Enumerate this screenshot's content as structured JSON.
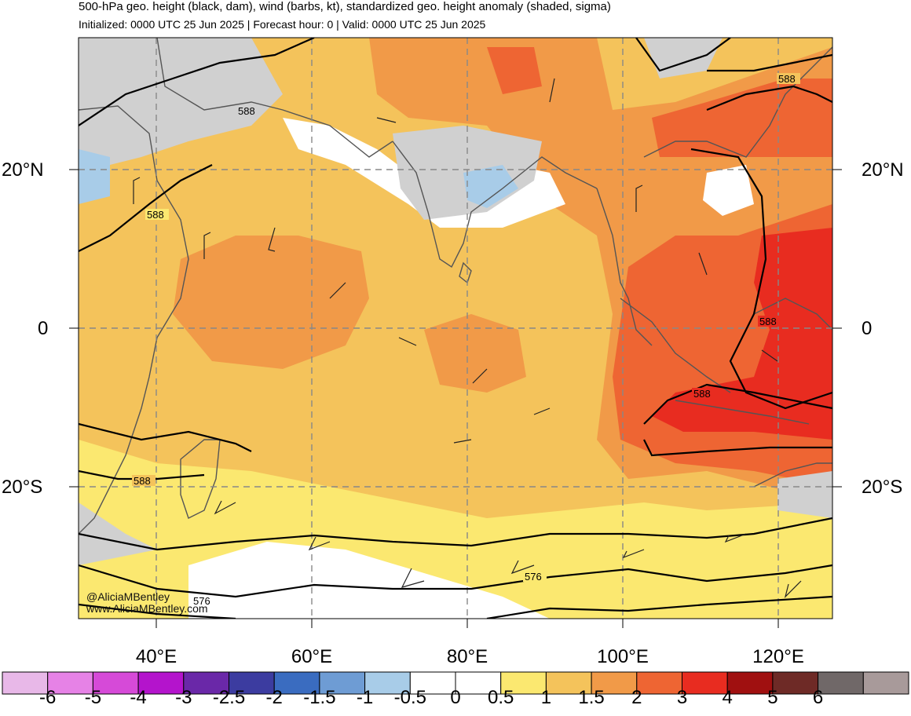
{
  "header": {
    "title": "500-hPa geo. height (black, dam), wind (barbs, kt), standardized geo. height anomaly (shaded, sigma)",
    "subtitle": "Initialized: 0000 UTC 25 Jun 2025 | Forecast hour: 0 | Valid: 0000 UTC 25 Jun 2025"
  },
  "map": {
    "lat_labels": [
      "20°N",
      "0",
      "20°S"
    ],
    "lon_labels": [
      "40°E",
      "60°E",
      "80°E",
      "100°E",
      "120°E"
    ],
    "contour_labels": [
      "588",
      "588",
      "588",
      "588",
      "588",
      "588",
      "576",
      "576"
    ],
    "colors": {
      "land_outline": "#555555",
      "grid": "#888888",
      "contour": "#000000",
      "neutral_gray": "#d0d0d0",
      "anom_0_5": "#fbe870",
      "anom_1": "#f4c35b",
      "anom_1_5": "#f19a48",
      "anom_2": "#ee6533",
      "anom_2_5": "#e82c20"
    }
  },
  "colorbar": {
    "labels": [
      "-6",
      "-5",
      "-4",
      "-3",
      "-2.5",
      "-2",
      "-1.5",
      "-1",
      "-0.5",
      "0",
      "0.5",
      "1",
      "1.5",
      "2",
      "3",
      "4",
      "5",
      "6"
    ],
    "colors": [
      "#e8b8e8",
      "#e682e6",
      "#d64ad8",
      "#b414cc",
      "#6a28a8",
      "#3c3ca0",
      "#3a6cc0",
      "#6e9cd4",
      "#a8cce8",
      "#ffffff",
      "#ffffff",
      "#fbe870",
      "#f4c35b",
      "#f19a48",
      "#ee6533",
      "#e82c20",
      "#a01010",
      "#6e2a26",
      "#706868",
      "#a89a9a"
    ]
  },
  "credits": {
    "handle": "@AliciaMBentley",
    "website": "www.AliciaMBentley.com"
  }
}
